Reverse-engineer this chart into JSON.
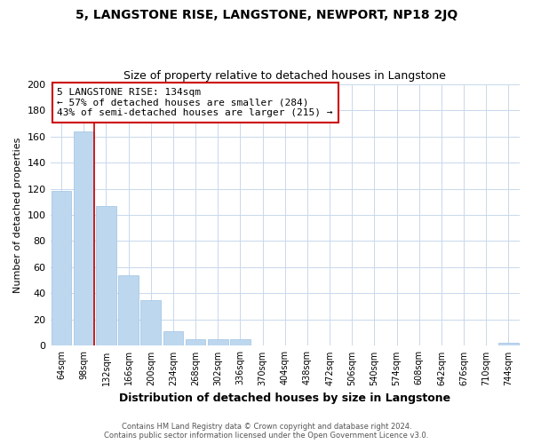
{
  "title": "5, LANGSTONE RISE, LANGSTONE, NEWPORT, NP18 2JQ",
  "subtitle": "Size of property relative to detached houses in Langstone",
  "xlabel": "Distribution of detached houses by size in Langstone",
  "ylabel": "Number of detached properties",
  "bin_labels": [
    "64sqm",
    "98sqm",
    "132sqm",
    "166sqm",
    "200sqm",
    "234sqm",
    "268sqm",
    "302sqm",
    "336sqm",
    "370sqm",
    "404sqm",
    "438sqm",
    "472sqm",
    "506sqm",
    "540sqm",
    "574sqm",
    "608sqm",
    "642sqm",
    "676sqm",
    "710sqm",
    "744sqm"
  ],
  "bar_values": [
    118,
    164,
    107,
    54,
    35,
    11,
    5,
    5,
    5,
    0,
    0,
    0,
    0,
    0,
    0,
    0,
    0,
    0,
    0,
    0,
    2
  ],
  "bar_color": "#bdd7ee",
  "bar_edge_color": "#9dc3e3",
  "highlight_line_color": "#cc0000",
  "ylim": [
    0,
    200
  ],
  "yticks": [
    0,
    20,
    40,
    60,
    80,
    100,
    120,
    140,
    160,
    180,
    200
  ],
  "annotation_title": "5 LANGSTONE RISE: 134sqm",
  "annotation_line1": "← 57% of detached houses are smaller (284)",
  "annotation_line2": "43% of semi-detached houses are larger (215) →",
  "annotation_box_color": "#ffffff",
  "annotation_box_edge": "#cc0000",
  "footer_line1": "Contains HM Land Registry data © Crown copyright and database right 2024.",
  "footer_line2": "Contains public sector information licensed under the Open Government Licence v3.0.",
  "background_color": "#ffffff",
  "grid_color": "#c8d8ec",
  "title_fontsize": 10,
  "subtitle_fontsize": 9,
  "xlabel_fontsize": 9,
  "ylabel_fontsize": 8
}
